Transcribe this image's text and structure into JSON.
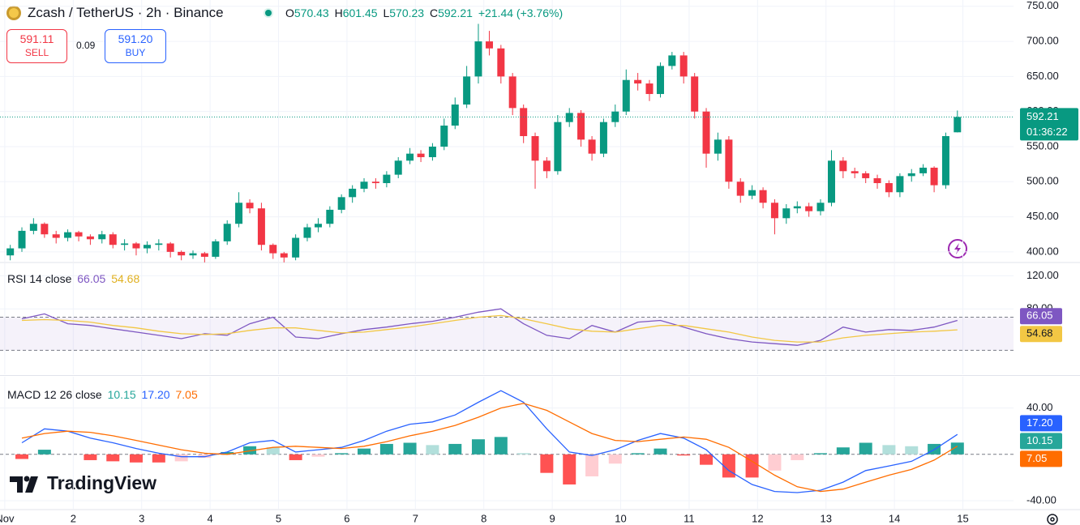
{
  "header": {
    "symbol": "Zcash / TetherUS · 2h · Binance",
    "ohlc_labels": [
      "O",
      "H",
      "L",
      "C"
    ],
    "change": "+21.44 (+3.76%)"
  },
  "trade": {
    "sell_price": "591.11",
    "sell": "SELL",
    "spread": "0.09",
    "buy_price": "591.20",
    "buy": "BUY"
  },
  "countdown": "01:36:22",
  "brand": "TradingView",
  "chart_data": [
    {
      "type": "candlestick",
      "x": [
        1.08,
        1.25,
        1.42,
        1.58,
        1.75,
        1.92,
        2.08,
        2.25,
        2.42,
        2.58,
        2.75,
        2.92,
        3.08,
        3.25,
        3.42,
        3.58,
        3.75,
        3.92,
        4.08,
        4.25,
        4.42,
        4.58,
        4.75,
        4.92,
        5.08,
        5.25,
        5.42,
        5.58,
        5.75,
        5.92,
        6.08,
        6.25,
        6.42,
        6.58,
        6.75,
        6.92,
        7.08,
        7.25,
        7.42,
        7.58,
        7.75,
        7.92,
        8.08,
        8.25,
        8.42,
        8.58,
        8.75,
        8.92,
        9.08,
        9.25,
        9.42,
        9.58,
        9.75,
        9.92,
        10.08,
        10.25,
        10.42,
        10.58,
        10.75,
        10.92,
        11.08,
        11.25,
        11.42,
        11.58,
        11.75,
        11.92,
        12.08,
        12.25,
        12.42,
        12.58,
        12.75,
        12.92,
        13.08,
        13.25,
        13.42,
        13.58,
        13.75,
        13.92,
        14.08,
        14.25,
        14.42,
        14.58,
        14.75,
        14.92
      ],
      "open": [
        395,
        405,
        430,
        440,
        425,
        420,
        428,
        422,
        418,
        425,
        410,
        412,
        405,
        410,
        412,
        400,
        395,
        398,
        393,
        415,
        440,
        470,
        462,
        410,
        398,
        392,
        420,
        435,
        440,
        460,
        478,
        490,
        500,
        498,
        510,
        530,
        540,
        535,
        550,
        580,
        610,
        650,
        700,
        690,
        650,
        605,
        565,
        530,
        515,
        585,
        598,
        560,
        540,
        585,
        600,
        645,
        640,
        625,
        665,
        680,
        650,
        600,
        540,
        560,
        500,
        480,
        488,
        470,
        448,
        462,
        465,
        458,
        470,
        530,
        515,
        512,
        505,
        498,
        485,
        508,
        512,
        520,
        495,
        570.43
      ],
      "high": [
        410,
        435,
        448,
        442,
        430,
        432,
        430,
        425,
        430,
        428,
        418,
        414,
        415,
        418,
        414,
        402,
        402,
        400,
        418,
        445,
        485,
        475,
        470,
        412,
        400,
        425,
        440,
        448,
        465,
        482,
        495,
        505,
        505,
        515,
        535,
        548,
        545,
        555,
        590,
        620,
        665,
        725,
        715,
        695,
        655,
        610,
        570,
        535,
        595,
        605,
        602,
        565,
        590,
        610,
        660,
        655,
        645,
        670,
        685,
        685,
        655,
        605,
        570,
        565,
        505,
        495,
        492,
        475,
        468,
        472,
        470,
        475,
        545,
        535,
        520,
        515,
        510,
        502,
        512,
        518,
        525,
        522,
        570,
        601.45
      ],
      "low": [
        388,
        400,
        425,
        420,
        412,
        415,
        415,
        410,
        412,
        405,
        402,
        395,
        398,
        402,
        392,
        388,
        390,
        385,
        390,
        410,
        435,
        455,
        402,
        390,
        385,
        388,
        415,
        428,
        435,
        455,
        470,
        485,
        490,
        492,
        505,
        525,
        528,
        530,
        545,
        575,
        605,
        640,
        680,
        640,
        595,
        555,
        490,
        505,
        510,
        578,
        550,
        530,
        535,
        578,
        595,
        630,
        615,
        620,
        660,
        640,
        590,
        520,
        530,
        490,
        470,
        475,
        462,
        425,
        440,
        455,
        450,
        452,
        465,
        505,
        505,
        498,
        490,
        478,
        478,
        500,
        508,
        485,
        490,
        570.23
      ],
      "close": [
        405,
        430,
        440,
        425,
        420,
        428,
        422,
        418,
        425,
        410,
        412,
        405,
        410,
        412,
        400,
        395,
        398,
        393,
        415,
        440,
        470,
        462,
        410,
        398,
        392,
        420,
        435,
        440,
        460,
        478,
        490,
        500,
        498,
        510,
        530,
        540,
        535,
        550,
        580,
        610,
        650,
        700,
        690,
        650,
        605,
        565,
        530,
        515,
        585,
        598,
        560,
        540,
        585,
        600,
        645,
        640,
        625,
        665,
        680,
        650,
        600,
        540,
        560,
        500,
        480,
        488,
        470,
        448,
        462,
        465,
        458,
        470,
        530,
        515,
        512,
        505,
        498,
        485,
        508,
        512,
        520,
        495,
        565,
        592.21
      ],
      "up_color": "#089981",
      "down_color": "#f23645",
      "xlim": [
        0.93,
        15.74
      ],
      "xticks": [
        {
          "value": 1,
          "label": "Nov"
        },
        2,
        3,
        4,
        5,
        6,
        7,
        8,
        9,
        10,
        11,
        12,
        13,
        14,
        15
      ],
      "ylim": [
        386,
        759
      ],
      "yticks": [
        {
          "value": 400,
          "label": "400.00"
        },
        {
          "value": 450,
          "label": "450.00"
        },
        {
          "value": 500,
          "label": "500.00"
        },
        {
          "value": 550,
          "label": "550.00"
        },
        {
          "value": 600,
          "label": "600.00"
        },
        {
          "value": 650,
          "label": "650.00"
        },
        {
          "value": 700,
          "label": "700.00"
        },
        {
          "value": 750,
          "label": "750.00"
        }
      ],
      "grid": true
    },
    {
      "type": "line",
      "title": "RSI 14 close",
      "x": [
        1.25,
        1.58,
        1.92,
        2.25,
        2.58,
        2.92,
        3.25,
        3.58,
        3.92,
        4.25,
        4.58,
        4.92,
        5.25,
        5.58,
        5.92,
        6.25,
        6.58,
        6.92,
        7.25,
        7.58,
        7.92,
        8.25,
        8.58,
        8.92,
        9.25,
        9.58,
        9.92,
        10.25,
        10.58,
        10.92,
        11.25,
        11.58,
        11.92,
        12.25,
        12.58,
        12.92,
        13.25,
        13.58,
        13.92,
        14.25,
        14.58,
        14.92
      ],
      "series": [
        {
          "color": "#7e57c2",
          "values": [
            68,
            74,
            62,
            60,
            56,
            52,
            48,
            44,
            50,
            48,
            62,
            70,
            46,
            44,
            50,
            55,
            58,
            62,
            65,
            70,
            76,
            80,
            62,
            48,
            44,
            60,
            52,
            64,
            66,
            58,
            50,
            44,
            40,
            38,
            36,
            42,
            58,
            52,
            55,
            54,
            58,
            66.05
          ]
        },
        {
          "color": "#f2c744",
          "values": [
            66,
            67,
            66,
            64,
            60,
            57,
            53,
            50,
            49,
            50,
            54,
            57,
            57,
            54,
            51,
            52,
            55,
            58,
            62,
            66,
            70,
            72,
            68,
            62,
            56,
            53,
            52,
            56,
            60,
            60,
            56,
            52,
            46,
            42,
            40,
            40,
            45,
            48,
            50,
            52,
            53,
            54.68
          ]
        }
      ],
      "levels": [
        70,
        30
      ],
      "band_color": "#7e57c2",
      "ylim": [
        1,
        135
      ],
      "yticks": [
        {
          "value": 80,
          "label": "80.00"
        },
        {
          "value": 120,
          "label": "120.00"
        }
      ]
    },
    {
      "type": "macd",
      "title": "MACD 12 26 close",
      "legend_labels": [
        "10.15",
        "17.20",
        "7.05"
      ],
      "x": [
        1.25,
        1.58,
        1.92,
        2.25,
        2.58,
        2.92,
        3.25,
        3.58,
        3.92,
        4.25,
        4.58,
        4.92,
        5.25,
        5.58,
        5.92,
        6.25,
        6.58,
        6.92,
        7.25,
        7.58,
        7.92,
        8.25,
        8.58,
        8.92,
        9.25,
        9.58,
        9.92,
        10.25,
        10.58,
        10.92,
        11.25,
        11.58,
        11.92,
        12.25,
        12.58,
        12.92,
        13.25,
        13.58,
        13.92,
        14.25,
        14.58,
        14.92
      ],
      "histogram": {
        "colors": [
          "#26a69a",
          "#b2dfdb",
          "#ff5252",
          "#ffcdd2"
        ],
        "values": [
          -4,
          4,
          0,
          -5,
          -6,
          -7,
          -7,
          -6,
          -3,
          2,
          7,
          6,
          -5,
          -2,
          1,
          5,
          9,
          10,
          8,
          9,
          13,
          15,
          1,
          -16,
          -26,
          -19,
          -8,
          1,
          5,
          -1,
          -9,
          -20,
          -20,
          -14,
          -5,
          1,
          6,
          10,
          8,
          7,
          9,
          10.15
        ]
      },
      "series": [
        {
          "color": "#2962ff",
          "values": [
            10,
            22,
            20,
            14,
            10,
            5,
            1,
            -2,
            -2,
            2,
            10,
            12,
            2,
            4,
            6,
            12,
            20,
            26,
            28,
            34,
            45,
            55,
            45,
            22,
            2,
            -1,
            4,
            12,
            18,
            14,
            4,
            -14,
            -26,
            -32,
            -33,
            -31,
            -24,
            -14,
            -10,
            -6,
            4,
            17.2
          ]
        },
        {
          "color": "#ff6d00",
          "values": [
            14,
            18,
            20,
            19,
            16,
            12,
            8,
            4,
            1,
            0,
            3,
            6,
            7,
            6,
            5,
            7,
            11,
            16,
            20,
            25,
            32,
            40,
            44,
            38,
            28,
            18,
            12,
            11,
            13,
            15,
            13,
            6,
            -6,
            -18,
            -28,
            -32,
            -30,
            -24,
            -18,
            -13,
            -5,
            7.05
          ]
        }
      ],
      "levels": [
        0
      ],
      "ylim": [
        -47,
        67
      ],
      "yticks": [
        {
          "value": -40,
          "label": "-40.00"
        },
        {
          "value": 40,
          "label": "40.00"
        }
      ]
    }
  ]
}
